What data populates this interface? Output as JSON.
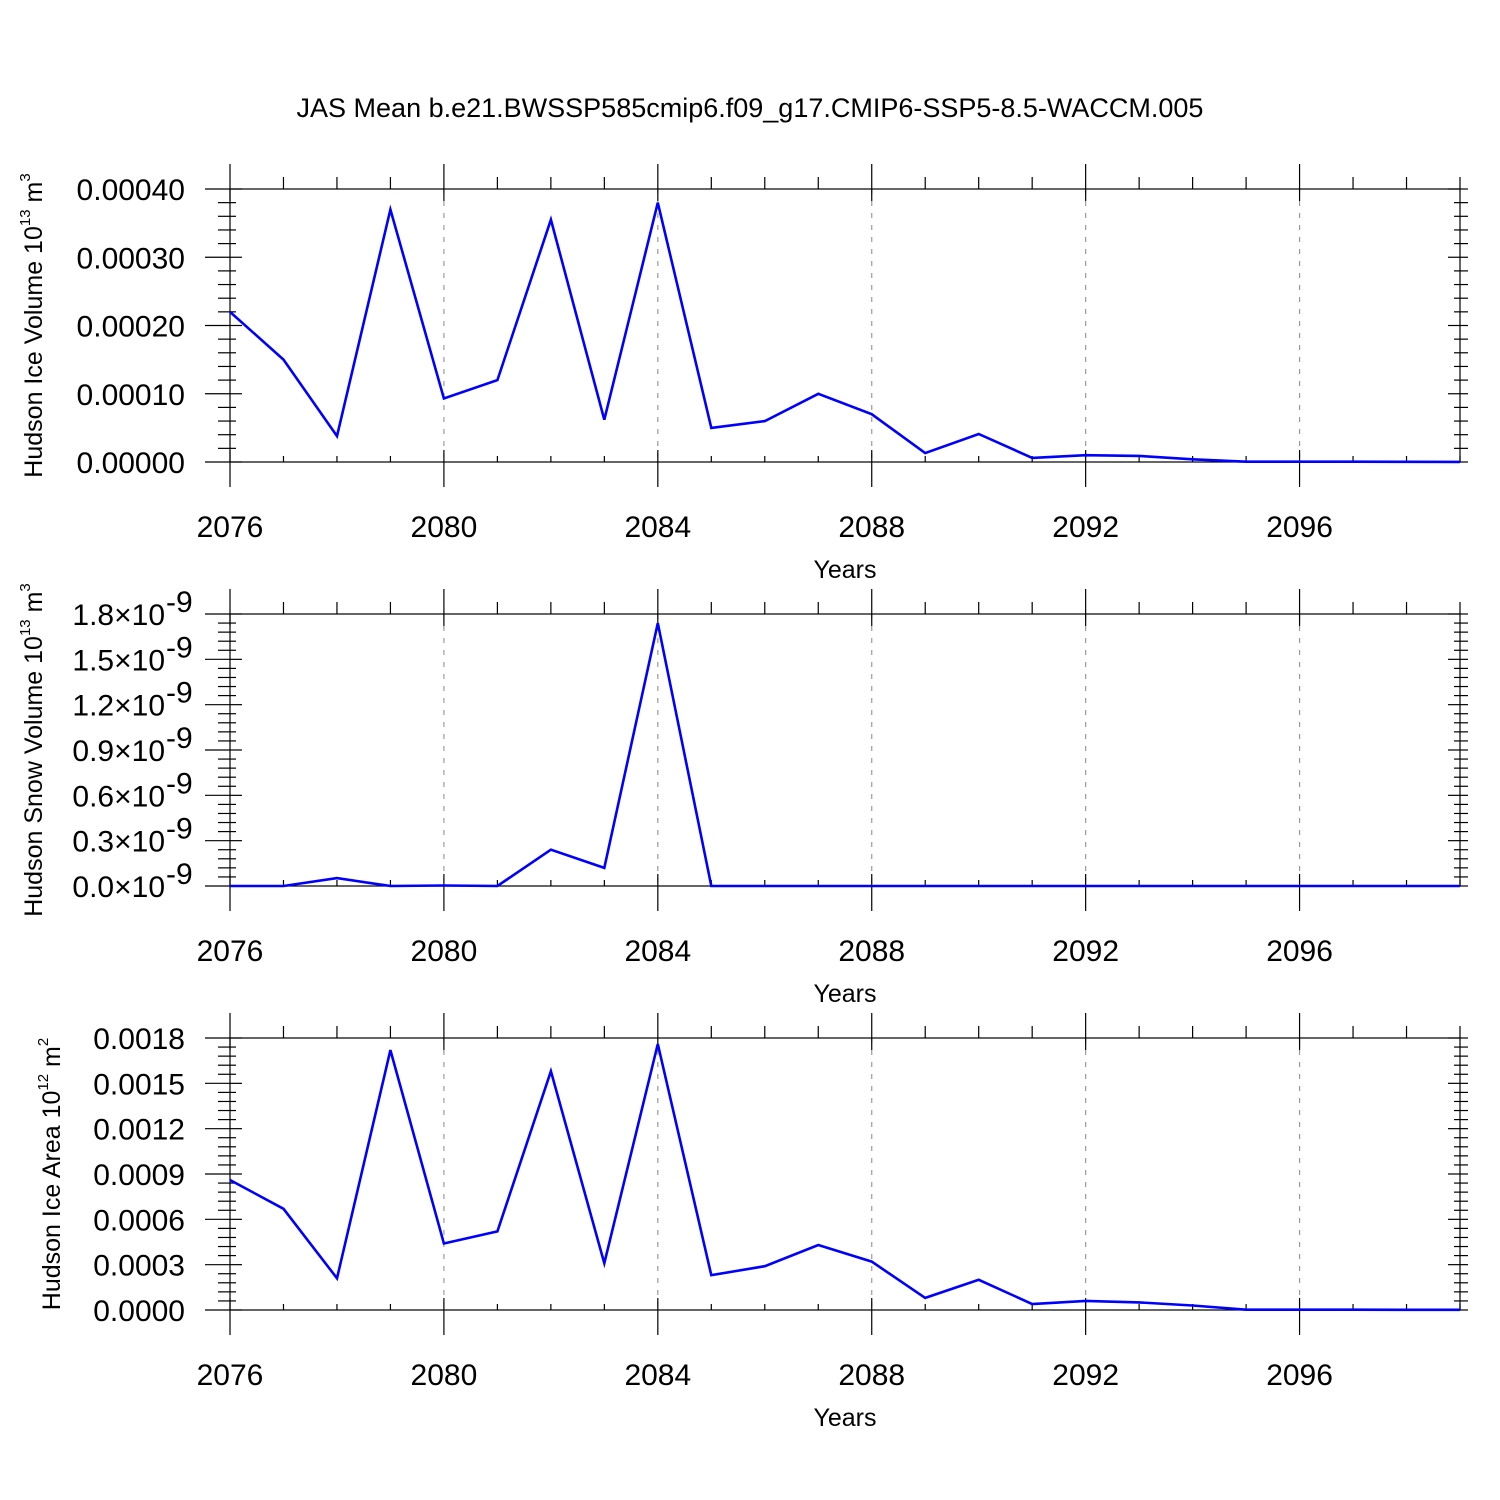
{
  "title": "JAS Mean b.e21.BWSSP585cmip6.f09_g17.CMIP6-SSP5-8.5-WACCM.005",
  "chart_data": [
    {
      "type": "line",
      "ylabel": "Hudson Ice Volume",
      "ylabel_unit_base": "10",
      "ylabel_unit_exp": "13",
      "ylabel_unit_m": "m",
      "ylabel_unit_m_exp": "3",
      "xlabel": "Years",
      "xlim": [
        2076,
        2099
      ],
      "ylim": [
        0,
        0.0004
      ],
      "xticks": [
        2076,
        2080,
        2084,
        2088,
        2092,
        2096
      ],
      "xtick_labels": [
        "2076",
        "2080",
        "2084",
        "2088",
        "2092",
        "2096"
      ],
      "yticks": [
        0,
        0.0001,
        0.0002,
        0.0003,
        0.0004
      ],
      "ytick_labels": [
        "0.00000",
        "0.00010",
        "0.00020",
        "0.00030",
        "0.00040"
      ],
      "ytick_exponent": "",
      "grid_x": [
        2080,
        2084,
        2088,
        2092,
        2096
      ],
      "x": [
        2076,
        2077,
        2078,
        2079,
        2080,
        2081,
        2082,
        2083,
        2084,
        2085,
        2086,
        2087,
        2088,
        2089,
        2090,
        2091,
        2092,
        2093,
        2094,
        2095,
        2096,
        2097,
        2098,
        2099
      ],
      "values": [
        0.00022,
        0.00015,
        3.8e-05,
        0.00037,
        9.3e-05,
        0.00012,
        0.000355,
        6.2e-05,
        0.00038,
        5e-05,
        6e-05,
        0.0001,
        7e-05,
        1.3e-05,
        4.1e-05,
        6e-06,
        1e-05,
        9e-06,
        4e-06,
        5e-07,
        5e-07,
        5e-07,
        3e-07,
        1e-07
      ]
    },
    {
      "type": "line",
      "ylabel": "Hudson Snow Volume",
      "ylabel_unit_base": "10",
      "ylabel_unit_exp": "13",
      "ylabel_unit_m": "m",
      "ylabel_unit_m_exp": "3",
      "xlabel": "Years",
      "xlim": [
        2076,
        2099
      ],
      "ylim": [
        0,
        1.8e-09
      ],
      "xticks": [
        2076,
        2080,
        2084,
        2088,
        2092,
        2096
      ],
      "xtick_labels": [
        "2076",
        "2080",
        "2084",
        "2088",
        "2092",
        "2096"
      ],
      "yticks": [
        0,
        3e-10,
        6e-10,
        9e-10,
        1.2e-09,
        1.5e-09,
        1.8e-09
      ],
      "ytick_labels": [
        "0.0×10",
        "0.3×10",
        "0.6×10",
        "0.9×10",
        "1.2×10",
        "1.5×10",
        "1.8×10"
      ],
      "ytick_exponent": "-9",
      "grid_x": [
        2080,
        2084,
        2088,
        2092,
        2096
      ],
      "x": [
        2076,
        2077,
        2078,
        2079,
        2080,
        2081,
        2082,
        2083,
        2084,
        2085,
        2086,
        2087,
        2088,
        2089,
        2090,
        2091,
        2092,
        2093,
        2094,
        2095,
        2096,
        2097,
        2098,
        2099
      ],
      "values": [
        0,
        0,
        5.2e-11,
        0,
        3e-12,
        0,
        2.4e-10,
        1.2e-10,
        1.74e-09,
        0,
        0,
        0,
        0,
        0,
        0,
        0,
        0,
        0,
        0,
        0,
        0,
        0,
        0,
        0
      ]
    },
    {
      "type": "line",
      "ylabel": "Hudson Ice Area",
      "ylabel_unit_base": "10",
      "ylabel_unit_exp": "12",
      "ylabel_unit_m": "m",
      "ylabel_unit_m_exp": "2",
      "xlabel": "Years",
      "xlim": [
        2076,
        2099
      ],
      "ylim": [
        0,
        0.0018
      ],
      "xticks": [
        2076,
        2080,
        2084,
        2088,
        2092,
        2096
      ],
      "xtick_labels": [
        "2076",
        "2080",
        "2084",
        "2088",
        "2092",
        "2096"
      ],
      "yticks": [
        0,
        0.0003,
        0.0006,
        0.0009,
        0.0012,
        0.0015,
        0.0018
      ],
      "ytick_labels": [
        "0.0000",
        "0.0003",
        "0.0006",
        "0.0009",
        "0.0012",
        "0.0015",
        "0.0018"
      ],
      "ytick_exponent": "",
      "grid_x": [
        2080,
        2084,
        2088,
        2092,
        2096
      ],
      "x": [
        2076,
        2077,
        2078,
        2079,
        2080,
        2081,
        2082,
        2083,
        2084,
        2085,
        2086,
        2087,
        2088,
        2089,
        2090,
        2091,
        2092,
        2093,
        2094,
        2095,
        2096,
        2097,
        2098,
        2099
      ],
      "values": [
        0.00086,
        0.00067,
        0.00021,
        0.00172,
        0.00044,
        0.00052,
        0.00158,
        0.00031,
        0.00176,
        0.00023,
        0.00029,
        0.00043,
        0.00032,
        8e-05,
        0.0002,
        4e-05,
        6e-05,
        5e-05,
        3e-05,
        2e-06,
        2e-06,
        2e-06,
        1e-06,
        1e-06
      ]
    }
  ],
  "colors": {
    "series": "#0000ff",
    "grid": "#9a9a9a",
    "axis": "#000000"
  }
}
